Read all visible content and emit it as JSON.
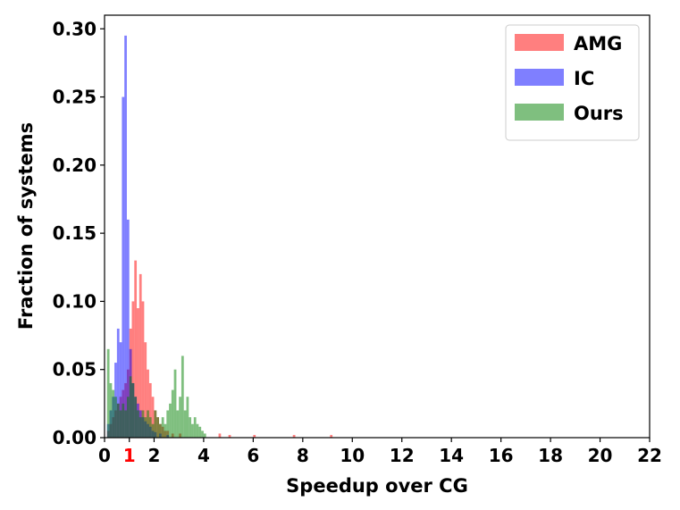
{
  "chart_data": {
    "type": "histogram",
    "title": "",
    "xlabel": "Speedup over CG",
    "ylabel": "Fraction of systems",
    "xlim": [
      0,
      22
    ],
    "ylim": [
      0,
      0.31
    ],
    "xticks": [
      "0",
      "1",
      "2",
      "4",
      "6",
      "8",
      "10",
      "12",
      "14",
      "16",
      "18",
      "20",
      "22"
    ],
    "highlight_tick": {
      "label": "1",
      "color": "#ff0000"
    },
    "yticks": [
      "0.00",
      "0.05",
      "0.10",
      "0.15",
      "0.20",
      "0.25",
      "0.30"
    ],
    "legend_position": "top-right",
    "bin_width": 0.1,
    "series": [
      {
        "name": "AMG",
        "color": "#ff0000",
        "opacity": 0.5,
        "bins": [
          [
            0.1,
            0.005
          ],
          [
            0.2,
            0.01
          ],
          [
            0.3,
            0.015
          ],
          [
            0.4,
            0.02
          ],
          [
            0.5,
            0.025
          ],
          [
            0.6,
            0.03
          ],
          [
            0.7,
            0.035
          ],
          [
            0.8,
            0.04
          ],
          [
            0.9,
            0.05
          ],
          [
            1.0,
            0.08
          ],
          [
            1.1,
            0.1
          ],
          [
            1.2,
            0.13
          ],
          [
            1.3,
            0.095
          ],
          [
            1.4,
            0.12
          ],
          [
            1.5,
            0.1
          ],
          [
            1.6,
            0.07
          ],
          [
            1.7,
            0.05
          ],
          [
            1.8,
            0.04
          ],
          [
            1.9,
            0.03
          ],
          [
            2.0,
            0.02
          ],
          [
            2.1,
            0.015
          ],
          [
            2.2,
            0.01
          ],
          [
            2.3,
            0.008
          ],
          [
            2.4,
            0.005
          ],
          [
            2.5,
            0.005
          ],
          [
            2.7,
            0.003
          ],
          [
            3.0,
            0.003
          ],
          [
            4.6,
            0.003
          ],
          [
            5.0,
            0.002
          ],
          [
            6.0,
            0.002
          ],
          [
            7.6,
            0.002
          ],
          [
            9.1,
            0.002
          ]
        ]
      },
      {
        "name": "IC",
        "color": "#0000ff",
        "opacity": 0.5,
        "bins": [
          [
            0.1,
            0.01
          ],
          [
            0.2,
            0.02
          ],
          [
            0.3,
            0.03
          ],
          [
            0.4,
            0.055
          ],
          [
            0.5,
            0.08
          ],
          [
            0.6,
            0.07
          ],
          [
            0.7,
            0.25
          ],
          [
            0.8,
            0.295
          ],
          [
            0.9,
            0.16
          ],
          [
            1.0,
            0.065
          ],
          [
            1.1,
            0.04
          ],
          [
            1.2,
            0.03
          ],
          [
            1.3,
            0.025
          ],
          [
            1.4,
            0.02
          ],
          [
            1.5,
            0.015
          ],
          [
            1.6,
            0.012
          ],
          [
            1.7,
            0.01
          ],
          [
            1.8,
            0.008
          ],
          [
            1.9,
            0.005
          ],
          [
            2.0,
            0.004
          ],
          [
            2.2,
            0.003
          ],
          [
            2.5,
            0.002
          ]
        ]
      },
      {
        "name": "Ours",
        "color": "#008000",
        "opacity": 0.5,
        "bins": [
          [
            0.1,
            0.065
          ],
          [
            0.2,
            0.04
          ],
          [
            0.3,
            0.035
          ],
          [
            0.4,
            0.03
          ],
          [
            0.5,
            0.025
          ],
          [
            0.6,
            0.02
          ],
          [
            0.7,
            0.025
          ],
          [
            0.8,
            0.02
          ],
          [
            0.9,
            0.03
          ],
          [
            1.0,
            0.045
          ],
          [
            1.1,
            0.04
          ],
          [
            1.2,
            0.03
          ],
          [
            1.3,
            0.02
          ],
          [
            1.4,
            0.015
          ],
          [
            1.5,
            0.02
          ],
          [
            1.6,
            0.015
          ],
          [
            1.7,
            0.02
          ],
          [
            1.8,
            0.015
          ],
          [
            1.9,
            0.01
          ],
          [
            2.0,
            0.02
          ],
          [
            2.1,
            0.015
          ],
          [
            2.2,
            0.01
          ],
          [
            2.3,
            0.015
          ],
          [
            2.4,
            0.01
          ],
          [
            2.5,
            0.02
          ],
          [
            2.6,
            0.025
          ],
          [
            2.7,
            0.035
          ],
          [
            2.8,
            0.05
          ],
          [
            2.9,
            0.02
          ],
          [
            3.0,
            0.03
          ],
          [
            3.1,
            0.06
          ],
          [
            3.2,
            0.02
          ],
          [
            3.3,
            0.03
          ],
          [
            3.4,
            0.015
          ],
          [
            3.5,
            0.01
          ],
          [
            3.6,
            0.015
          ],
          [
            3.7,
            0.01
          ],
          [
            3.8,
            0.008
          ],
          [
            3.9,
            0.005
          ],
          [
            4.0,
            0.003
          ]
        ]
      }
    ]
  }
}
